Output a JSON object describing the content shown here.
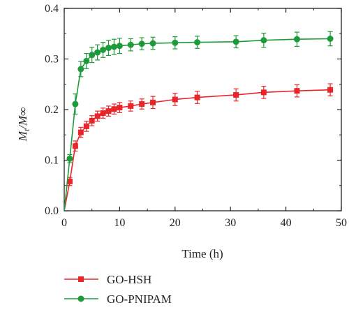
{
  "chart_data": {
    "type": "line",
    "xlabel": "Time (h)",
    "ylabel_main": "M",
    "ylabel_sub": "t",
    "ylabel_rest": "/M∞",
    "xlim": [
      0,
      50
    ],
    "ylim": [
      0,
      0.4
    ],
    "xticks": [
      0,
      10,
      20,
      30,
      40,
      50
    ],
    "yticks": [
      0.0,
      0.1,
      0.2,
      0.3,
      0.4
    ],
    "xtick_labels": [
      "0",
      "10",
      "20",
      "30",
      "40",
      "50"
    ],
    "ytick_labels": [
      "0.0",
      "0.1",
      "0.2",
      "0.3",
      "0.4"
    ],
    "grid": false,
    "legend_position": "bottom",
    "series": [
      {
        "name": "GO-HSH",
        "color": "#e8262a",
        "marker": "square",
        "points": [
          [
            0,
            0
          ],
          [
            1,
            0.058
          ],
          [
            2,
            0.128
          ],
          [
            3,
            0.155
          ],
          [
            4,
            0.167
          ],
          [
            5,
            0.178
          ],
          [
            6,
            0.187
          ],
          [
            7,
            0.193
          ],
          [
            8,
            0.197
          ],
          [
            9,
            0.201
          ],
          [
            10,
            0.204
          ],
          [
            12,
            0.207
          ],
          [
            14,
            0.211
          ],
          [
            16,
            0.214
          ],
          [
            20,
            0.22
          ],
          [
            24,
            0.224
          ],
          [
            31,
            0.229
          ],
          [
            36,
            0.234
          ],
          [
            42,
            0.237
          ],
          [
            48,
            0.239
          ]
        ],
        "errors": [
          0,
          0.008,
          0.01,
          0.01,
          0.01,
          0.01,
          0.01,
          0.01,
          0.01,
          0.01,
          0.01,
          0.01,
          0.01,
          0.012,
          0.012,
          0.012,
          0.012,
          0.012,
          0.012,
          0.012
        ]
      },
      {
        "name": "GO-PNIPAM",
        "color": "#1f9a3a",
        "marker": "circle",
        "points": [
          [
            0,
            0
          ],
          [
            1,
            0.103
          ],
          [
            2,
            0.211
          ],
          [
            3,
            0.28
          ],
          [
            4,
            0.296
          ],
          [
            5,
            0.308
          ],
          [
            6,
            0.313
          ],
          [
            7,
            0.318
          ],
          [
            8,
            0.322
          ],
          [
            9,
            0.324
          ],
          [
            10,
            0.326
          ],
          [
            12,
            0.328
          ],
          [
            14,
            0.33
          ],
          [
            16,
            0.331
          ],
          [
            20,
            0.332
          ],
          [
            24,
            0.333
          ],
          [
            31,
            0.334
          ],
          [
            36,
            0.337
          ],
          [
            42,
            0.339
          ],
          [
            48,
            0.34
          ]
        ],
        "errors": [
          0,
          0.008,
          0.02,
          0.015,
          0.015,
          0.015,
          0.015,
          0.015,
          0.015,
          0.015,
          0.015,
          0.012,
          0.012,
          0.012,
          0.012,
          0.012,
          0.012,
          0.014,
          0.014,
          0.014
        ]
      }
    ]
  }
}
